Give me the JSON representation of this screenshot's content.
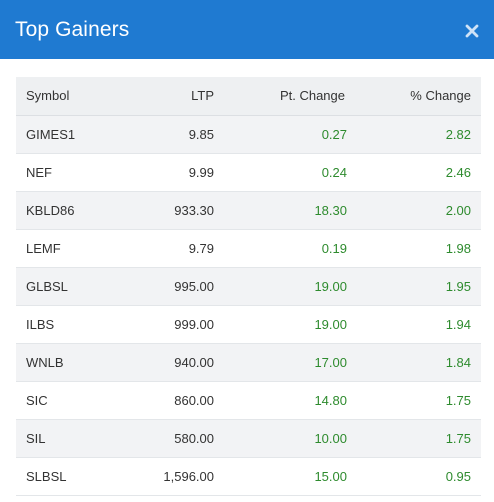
{
  "header": {
    "title": "Top Gainers",
    "close_icon": "close-icon",
    "background_color": "#1f7ad1"
  },
  "table": {
    "columns": {
      "symbol": "Symbol",
      "ltp": "LTP",
      "pt_change": "Pt. Change",
      "pct_change": "% Change"
    },
    "positive_color": "#2e8b2e",
    "rows": [
      {
        "symbol": "GIMES1",
        "ltp": "9.85",
        "pt_change": "0.27",
        "pct_change": "2.82"
      },
      {
        "symbol": "NEF",
        "ltp": "9.99",
        "pt_change": "0.24",
        "pct_change": "2.46"
      },
      {
        "symbol": "KBLD86",
        "ltp": "933.30",
        "pt_change": "18.30",
        "pct_change": "2.00"
      },
      {
        "symbol": "LEMF",
        "ltp": "9.79",
        "pt_change": "0.19",
        "pct_change": "1.98"
      },
      {
        "symbol": "GLBSL",
        "ltp": "995.00",
        "pt_change": "19.00",
        "pct_change": "1.95"
      },
      {
        "symbol": "ILBS",
        "ltp": "999.00",
        "pt_change": "19.00",
        "pct_change": "1.94"
      },
      {
        "symbol": "WNLB",
        "ltp": "940.00",
        "pt_change": "17.00",
        "pct_change": "1.84"
      },
      {
        "symbol": "SIC",
        "ltp": "860.00",
        "pt_change": "14.80",
        "pct_change": "1.75"
      },
      {
        "symbol": "SIL",
        "ltp": "580.00",
        "pt_change": "10.00",
        "pct_change": "1.75"
      },
      {
        "symbol": "SLBSL",
        "ltp": "1,596.00",
        "pt_change": "15.00",
        "pct_change": "0.95"
      }
    ]
  }
}
